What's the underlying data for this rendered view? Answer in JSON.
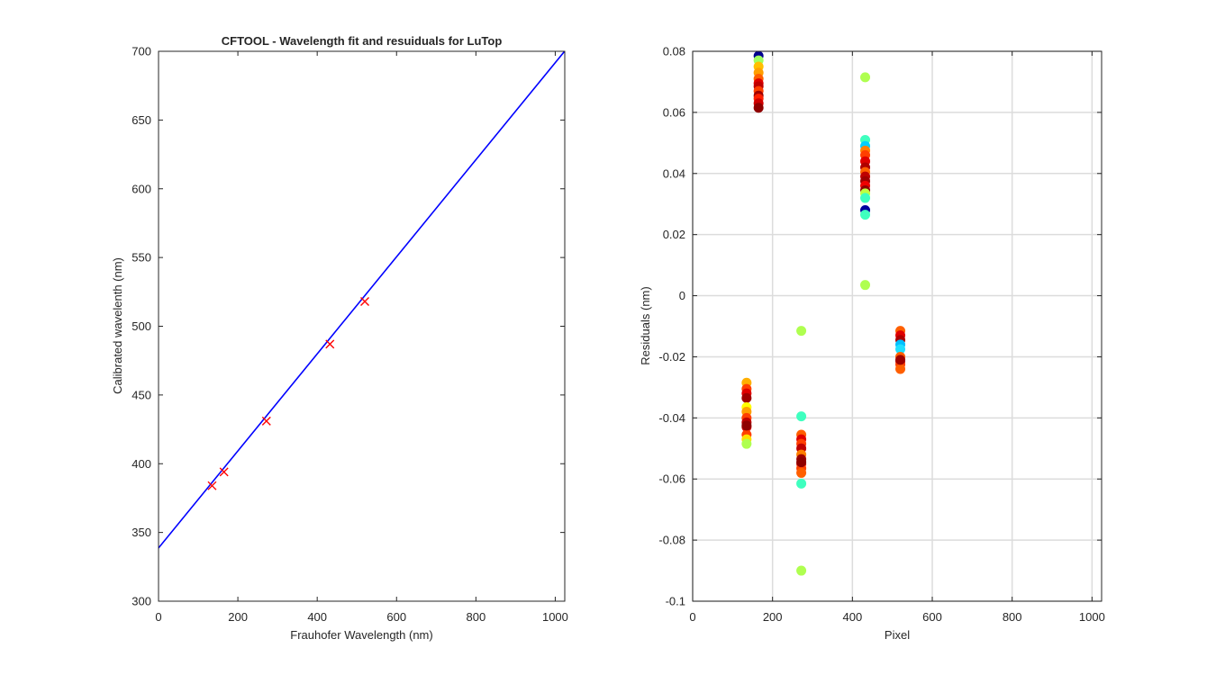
{
  "chart_data": [
    {
      "type": "line",
      "title": "CFTOOL - Wavelength fit and resuiduals for LuTop",
      "xlabel": "Frauhofer Wavelength (nm)",
      "ylabel": "Calibrated wavelenth (nm)",
      "xlim": [
        0,
        1024
      ],
      "ylim": [
        300,
        700
      ],
      "xticks": [
        0,
        200,
        400,
        600,
        800,
        1000
      ],
      "yticks": [
        300,
        350,
        400,
        450,
        500,
        550,
        600,
        650,
        700
      ],
      "grid": false,
      "series": [
        {
          "kind": "line",
          "color": "#0000ff",
          "x": [
            0,
            1024
          ],
          "y": [
            338.7,
            700.2
          ]
        },
        {
          "kind": "markers",
          "marker": "x",
          "color": "#ff0000",
          "x": [
            135,
            165,
            272,
            432,
            520
          ],
          "y": [
            384,
            394,
            431,
            487,
            518
          ]
        }
      ]
    },
    {
      "type": "scatter",
      "title": "",
      "xlabel": "Pixel",
      "ylabel": "Residuals  (nm)",
      "xlim": [
        0,
        1024
      ],
      "ylim": [
        -0.1,
        0.08
      ],
      "xticks": [
        0,
        200,
        400,
        600,
        800,
        1000
      ],
      "yticks": [
        -0.1,
        -0.08,
        -0.06,
        -0.04,
        -0.02,
        0,
        0.02,
        0.04,
        0.06,
        0.08
      ],
      "ytick_labels": [
        "-0.1",
        "-0.08",
        "-0.06",
        "-0.04",
        "-0.02",
        "0",
        "0.02",
        "0.04",
        "0.06",
        "0.08"
      ],
      "grid": true,
      "points": [
        {
          "x": 165,
          "y": 0.0785,
          "color": "#00008f"
        },
        {
          "x": 165,
          "y": 0.077,
          "color": "#9fff60"
        },
        {
          "x": 165,
          "y": 0.075,
          "color": "#ffbf00"
        },
        {
          "x": 165,
          "y": 0.073,
          "color": "#ff9f00"
        },
        {
          "x": 165,
          "y": 0.071,
          "color": "#ff5f00"
        },
        {
          "x": 165,
          "y": 0.0695,
          "color": "#df0000"
        },
        {
          "x": 165,
          "y": 0.0685,
          "color": "#bf0000"
        },
        {
          "x": 165,
          "y": 0.067,
          "color": "#ff3f00"
        },
        {
          "x": 165,
          "y": 0.0655,
          "color": "#9f0000"
        },
        {
          "x": 165,
          "y": 0.0645,
          "color": "#ff1f00"
        },
        {
          "x": 165,
          "y": 0.063,
          "color": "#cf0000"
        },
        {
          "x": 165,
          "y": 0.0615,
          "color": "#8f0000"
        },
        {
          "x": 432,
          "y": 0.0715,
          "color": "#afff50"
        },
        {
          "x": 432,
          "y": 0.051,
          "color": "#3fffbf"
        },
        {
          "x": 432,
          "y": 0.049,
          "color": "#00cfff"
        },
        {
          "x": 432,
          "y": 0.0475,
          "color": "#ff7f00"
        },
        {
          "x": 432,
          "y": 0.046,
          "color": "#ff3f00"
        },
        {
          "x": 432,
          "y": 0.044,
          "color": "#df0000"
        },
        {
          "x": 432,
          "y": 0.042,
          "color": "#af0000"
        },
        {
          "x": 432,
          "y": 0.0405,
          "color": "#ff5f00"
        },
        {
          "x": 432,
          "y": 0.039,
          "color": "#bf0000"
        },
        {
          "x": 432,
          "y": 0.0375,
          "color": "#9f0000"
        },
        {
          "x": 432,
          "y": 0.036,
          "color": "#ef0000"
        },
        {
          "x": 432,
          "y": 0.0345,
          "color": "#8f0000"
        },
        {
          "x": 432,
          "y": 0.0335,
          "color": "#bfff40"
        },
        {
          "x": 432,
          "y": 0.032,
          "color": "#3fffbf"
        },
        {
          "x": 432,
          "y": 0.028,
          "color": "#00009f"
        },
        {
          "x": 432,
          "y": 0.0265,
          "color": "#3fffbf"
        },
        {
          "x": 432,
          "y": 0.0035,
          "color": "#afff50"
        },
        {
          "x": 520,
          "y": -0.0115,
          "color": "#ff5f00"
        },
        {
          "x": 520,
          "y": -0.013,
          "color": "#df0000"
        },
        {
          "x": 520,
          "y": -0.0145,
          "color": "#af0000"
        },
        {
          "x": 520,
          "y": -0.016,
          "color": "#00bfff"
        },
        {
          "x": 520,
          "y": -0.0175,
          "color": "#20dfff"
        },
        {
          "x": 520,
          "y": -0.02,
          "color": "#ff5f00"
        },
        {
          "x": 520,
          "y": -0.0215,
          "color": "#df0000"
        },
        {
          "x": 520,
          "y": -0.0225,
          "color": "#ff3f00"
        },
        {
          "x": 520,
          "y": -0.024,
          "color": "#ff5f00"
        },
        {
          "x": 520,
          "y": -0.021,
          "color": "#9f0000"
        },
        {
          "x": 135,
          "y": -0.0285,
          "color": "#ffaf00"
        },
        {
          "x": 135,
          "y": -0.0305,
          "color": "#ff3f00"
        },
        {
          "x": 135,
          "y": -0.032,
          "color": "#df0000"
        },
        {
          "x": 135,
          "y": -0.0335,
          "color": "#9f0000"
        },
        {
          "x": 135,
          "y": -0.0365,
          "color": "#ffff00"
        },
        {
          "x": 135,
          "y": -0.038,
          "color": "#ff9f00"
        },
        {
          "x": 135,
          "y": -0.04,
          "color": "#ff3f00"
        },
        {
          "x": 135,
          "y": -0.0415,
          "color": "#bf0000"
        },
        {
          "x": 135,
          "y": -0.043,
          "color": "#df0000"
        },
        {
          "x": 135,
          "y": -0.0455,
          "color": "#ff3f00"
        },
        {
          "x": 135,
          "y": -0.047,
          "color": "#ffdf00"
        },
        {
          "x": 135,
          "y": -0.0485,
          "color": "#afff50"
        },
        {
          "x": 135,
          "y": -0.0425,
          "color": "#8f0000"
        },
        {
          "x": 272,
          "y": -0.0115,
          "color": "#afff50"
        },
        {
          "x": 272,
          "y": -0.0395,
          "color": "#3fffbf"
        },
        {
          "x": 272,
          "y": -0.0455,
          "color": "#ff5f00"
        },
        {
          "x": 272,
          "y": -0.047,
          "color": "#df0000"
        },
        {
          "x": 272,
          "y": -0.0485,
          "color": "#ff3f00"
        },
        {
          "x": 272,
          "y": -0.05,
          "color": "#bf0000"
        },
        {
          "x": 272,
          "y": -0.052,
          "color": "#ff7f00"
        },
        {
          "x": 272,
          "y": -0.0535,
          "color": "#9f0000"
        },
        {
          "x": 272,
          "y": -0.055,
          "color": "#df0000"
        },
        {
          "x": 272,
          "y": -0.0565,
          "color": "#ff3f00"
        },
        {
          "x": 272,
          "y": -0.058,
          "color": "#ff5f00"
        },
        {
          "x": 272,
          "y": -0.0545,
          "color": "#8f0000"
        },
        {
          "x": 272,
          "y": -0.0615,
          "color": "#3fffbf"
        },
        {
          "x": 272,
          "y": -0.09,
          "color": "#afff50"
        }
      ]
    }
  ]
}
